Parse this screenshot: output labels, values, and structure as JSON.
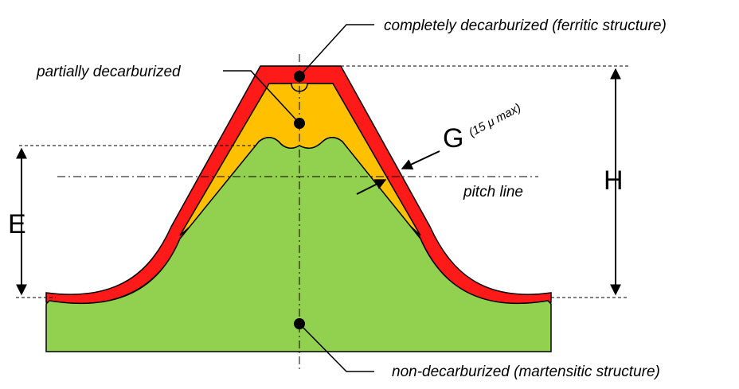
{
  "labels": {
    "completely": "completely decarburized (ferritic structure)",
    "partially": "partially decarburized",
    "non": "non-decarburized (martensitic structure)",
    "pitch": "pitch line",
    "g_letter": "G",
    "g_note": "(15 μ max)",
    "e_letter": "E",
    "h_letter": "H"
  },
  "colors": {
    "outer_layer": "#ff1a1a",
    "partial_layer": "#ffc000",
    "core": "#92d050",
    "line": "#000000"
  }
}
